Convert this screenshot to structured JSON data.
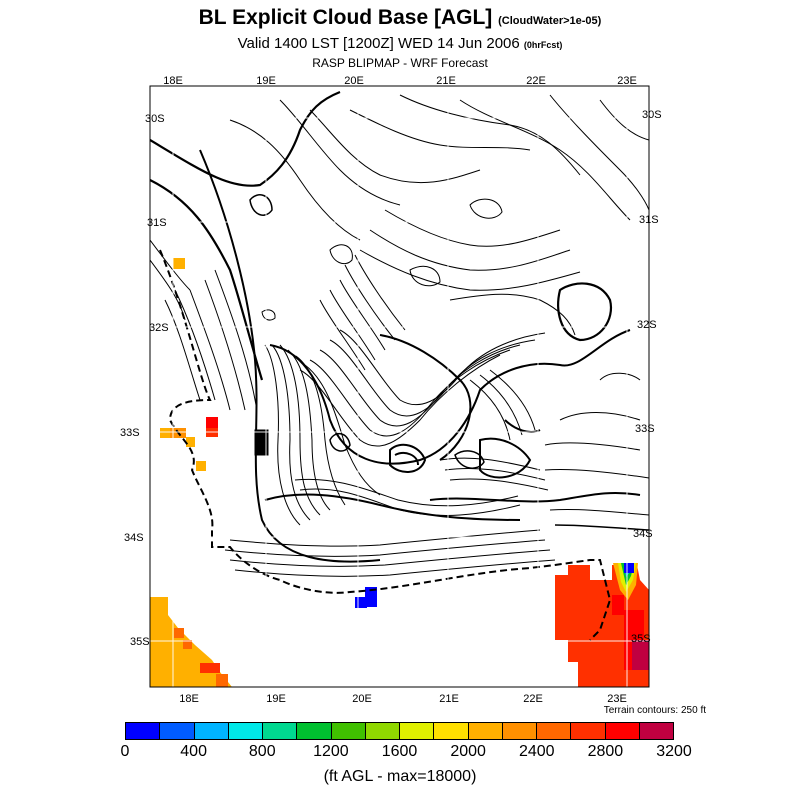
{
  "header": {
    "title": "BL Explicit Cloud Base [AGL]",
    "title_note": "(CloudWater>1e-05)",
    "subtitle": "Valid 1400 LST [1200Z] WED 14 Jun 2006",
    "subtitle_note": "(0hrFcst)",
    "forecast": "RASP BLIPMAP - WRF Forecast"
  },
  "map": {
    "lon_top": [
      "18E",
      "19E",
      "20E",
      "21E",
      "22E",
      "23E"
    ],
    "lon_bottom": [
      "18E",
      "19E",
      "20E",
      "21E",
      "22E",
      "23E"
    ],
    "lat_left": [
      "30S",
      "31S",
      "32S",
      "33S",
      "34S",
      "35S"
    ],
    "lat_right": [
      "30S",
      "31S",
      "32S",
      "33S",
      "34S",
      "35S"
    ],
    "terrain_note": "Terrain contours: 250 ft"
  },
  "colorbar": {
    "colors": [
      "#0000ff",
      "#005cff",
      "#00b4ff",
      "#00e8e8",
      "#00d890",
      "#00c030",
      "#40c000",
      "#90d800",
      "#e0f000",
      "#ffe000",
      "#ffb000",
      "#ff9000",
      "#ff6800",
      "#ff3000",
      "#ff0000",
      "#c00040"
    ],
    "tick_labels": [
      "0",
      "400",
      "800",
      "1200",
      "1600",
      "2000",
      "2400",
      "2800",
      "3200"
    ],
    "units": "(ft AGL - max=18000)"
  }
}
